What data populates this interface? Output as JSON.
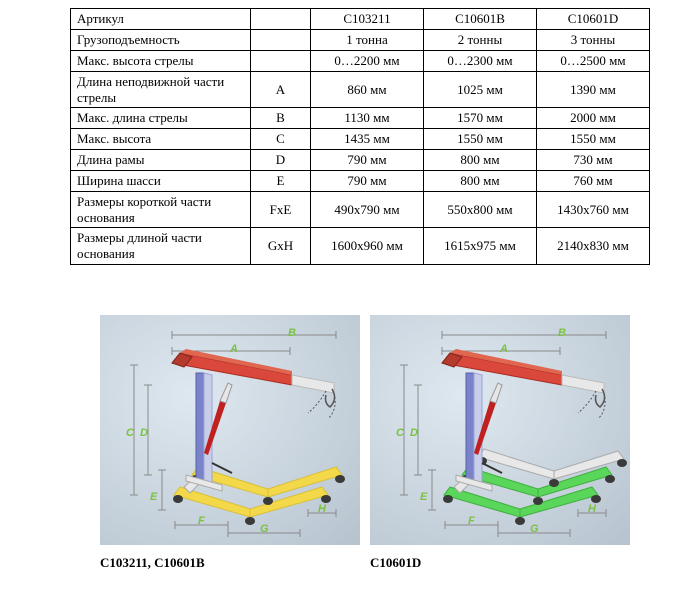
{
  "table": {
    "columns": [
      "Артикул",
      "",
      "C103211",
      "C10601B",
      "C10601D"
    ],
    "rows": [
      {
        "param": "Грузоподъемность",
        "dim": "",
        "vals": [
          "1 тонна",
          "2 тонны",
          "3 тонны"
        ]
      },
      {
        "param": "Макс. высота стрелы",
        "dim": "",
        "vals": [
          "0…2200 мм",
          "0…2300 мм",
          "0…2500 мм"
        ]
      },
      {
        "param": "Длина неподвижной части стрелы",
        "dim": "A",
        "vals": [
          "860 мм",
          "1025 мм",
          "1390 мм"
        ],
        "multiline": true
      },
      {
        "param": "Макс. длина стрелы",
        "dim": "B",
        "vals": [
          "1130 мм",
          "1570 мм",
          "2000 мм"
        ]
      },
      {
        "param": "Макс. высота",
        "dim": "C",
        "vals": [
          "1435 мм",
          "1550 мм",
          "1550 мм"
        ]
      },
      {
        "param": "Длина рамы",
        "dim": "D",
        "vals": [
          "790 мм",
          "800 мм",
          "730 мм"
        ]
      },
      {
        "param": "Ширина шасси",
        "dim": "E",
        "vals": [
          "790 мм",
          "800 мм",
          "760 мм"
        ]
      },
      {
        "param": "Размеры короткой части основания",
        "dim": "FxE",
        "vals": [
          "490x790 мм",
          "550x800 мм",
          "1430x760 мм"
        ],
        "multiline": true
      },
      {
        "param": "Размеры длиной части основания",
        "dim": "GxH",
        "vals": [
          "1600x960 мм",
          "1615x975 мм",
          "2140x830 мм"
        ],
        "multiline": true
      }
    ]
  },
  "diagrams": {
    "left": {
      "label": "C103211, C10601B"
    },
    "right": {
      "label": "C10601D"
    }
  },
  "dim_letters": [
    "A",
    "B",
    "C",
    "D",
    "E",
    "F",
    "G",
    "H"
  ],
  "colors": {
    "boom": "#d9483b",
    "ext": "#e8e8e8",
    "cyl": "#c02020",
    "cylrod": "#e6e6e6",
    "mastL": "#7a83c9",
    "mastR": "#c8cde8",
    "base": "#e8e8e8",
    "legYellow": "#f3d94a",
    "legYellowD": "#d9bf38",
    "legGreen": "#5ad65a",
    "legGreenD": "#3eb03e",
    "wheel": "#3a3a3a",
    "dimline": "#8a8a8a",
    "dimlabel": "#7cc242"
  }
}
